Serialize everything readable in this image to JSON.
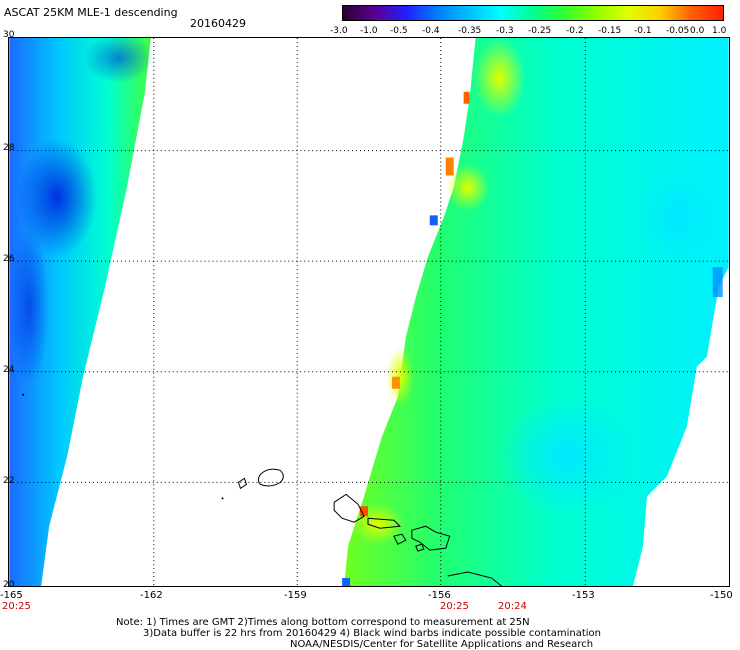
{
  "header": {
    "title": "ASCAT 25KM MLE-1 descending",
    "date": "20160429"
  },
  "colorbar": {
    "labels": [
      "-3.0",
      "-1.0",
      "-0.5",
      "-0.4",
      "-0.35",
      "-0.3",
      "-0.25",
      "-0.2",
      "-0.15",
      "-0.1",
      "-0.05",
      "0.0",
      "1.0"
    ],
    "colors": [
      "#2a0030",
      "#5a0090",
      "#2020ff",
      "#0080ff",
      "#00c0ff",
      "#00ffff",
      "#00ff90",
      "#30ff30",
      "#90ff00",
      "#e0ff00",
      "#ffd000",
      "#ff6000",
      "#ff2000"
    ]
  },
  "axes": {
    "lat_labels": [
      "30",
      "28",
      "26",
      "24",
      "22",
      "20"
    ],
    "lon_labels": [
      "-165",
      "-162",
      "-159",
      "-156",
      "-153",
      "-150"
    ],
    "time_labels": [
      "20:25",
      "20:25",
      "20:24"
    ]
  },
  "notes": {
    "line1": "Note: 1) Times are GMT 2)Times along bottom correspond to measurement at 25N",
    "line2": "3)Data buffer is 22 hrs from 20160429 4) Black wind barbs indicate possible contamination",
    "line3": "NOAA/NESDIS/Center for Satellite Applications and Research"
  }
}
